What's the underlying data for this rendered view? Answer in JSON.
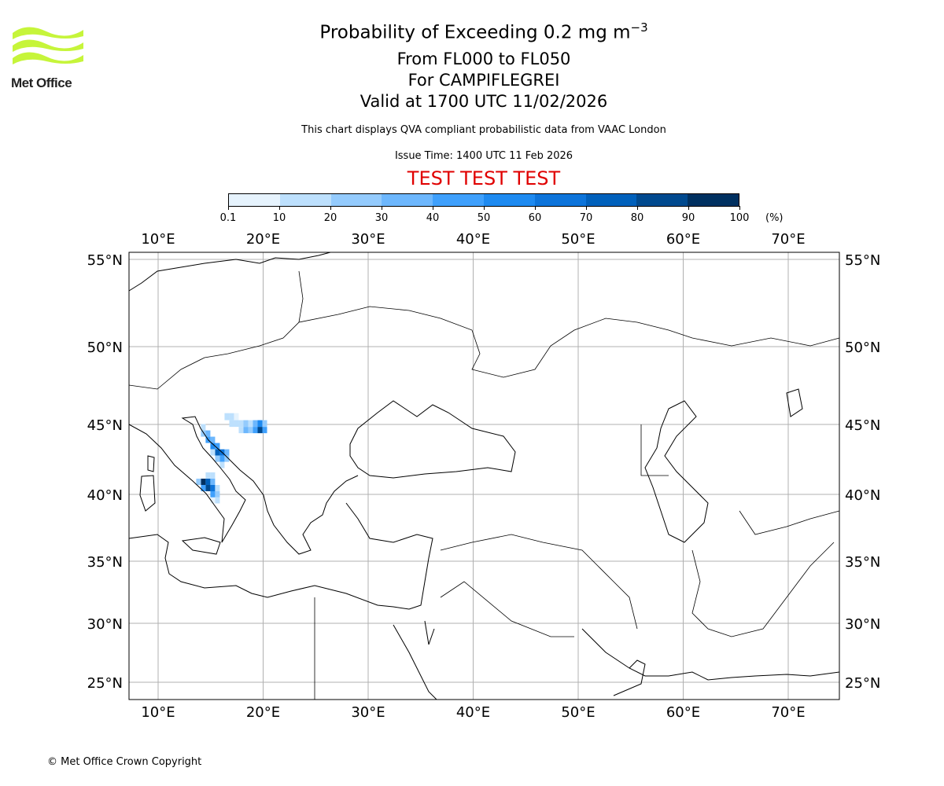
{
  "logo": {
    "text": "Met Office"
  },
  "header": {
    "title": "Probability of Exceeding 0.2 mg m",
    "title_sup": "−3",
    "level_range": "From FL000 to FL050",
    "volcano": "For CAMPIFLEGREI",
    "valid_time": "Valid at 1700 UTC 11/02/2026",
    "note": "This chart displays QVA compliant probabilistic data from VAAC London",
    "issue_time": "Issue Time: 1400 UTC 11 Feb 2026",
    "test_banner": "TEST TEST TEST"
  },
  "colorbar": {
    "ticks": [
      "0.1",
      "10",
      "20",
      "30",
      "40",
      "50",
      "60",
      "70",
      "80",
      "90",
      "100"
    ],
    "unit": "(%)",
    "colors": [
      "#e6f3fd",
      "#bde0fd",
      "#94cbfd",
      "#6db7fd",
      "#3fa0fc",
      "#1e8af0",
      "#0d74da",
      "#0060bb",
      "#00498e",
      "#003060"
    ]
  },
  "chart_data": {
    "type": "heatmap",
    "title": "Probability of Exceeding 0.2 mg m-3",
    "xlim": [
      7.2,
      74.9
    ],
    "ylim": [
      23.8,
      55.5
    ],
    "x_ticks": [
      "10°E",
      "20°E",
      "30°E",
      "40°E",
      "50°E",
      "60°E",
      "70°E"
    ],
    "y_ticks": [
      "55°N",
      "50°N",
      "45°N",
      "40°N",
      "35°N",
      "30°N",
      "25°N"
    ],
    "grid": true,
    "cell_size_deg": 0.45,
    "cells_lon_lat_pct": [
      [
        14.3,
        40.9,
        90
      ],
      [
        14.75,
        40.9,
        70
      ],
      [
        14.75,
        40.45,
        80
      ],
      [
        15.2,
        40.45,
        60
      ],
      [
        14.3,
        40.45,
        40
      ],
      [
        15.2,
        40.9,
        30
      ],
      [
        15.2,
        40.0,
        40
      ],
      [
        15.65,
        40.0,
        20
      ],
      [
        14.75,
        41.35,
        10
      ],
      [
        15.2,
        41.35,
        10
      ],
      [
        13.85,
        40.9,
        20
      ],
      [
        15.65,
        40.45,
        10
      ],
      [
        15.65,
        39.55,
        10
      ],
      [
        15.2,
        39.55,
        5
      ],
      [
        14.3,
        44.8,
        10
      ],
      [
        14.3,
        44.35,
        20
      ],
      [
        14.75,
        44.35,
        30
      ],
      [
        14.75,
        43.9,
        40
      ],
      [
        15.2,
        43.9,
        30
      ],
      [
        15.2,
        43.45,
        50
      ],
      [
        15.65,
        43.45,
        40
      ],
      [
        15.65,
        43.0,
        70
      ],
      [
        16.1,
        43.0,
        60
      ],
      [
        16.1,
        42.55,
        40
      ],
      [
        16.55,
        42.55,
        20
      ],
      [
        15.65,
        42.55,
        20
      ],
      [
        16.55,
        43.0,
        30
      ],
      [
        16.1,
        42.1,
        10
      ],
      [
        15.2,
        43.0,
        10
      ],
      [
        16.55,
        45.5,
        10
      ],
      [
        17.0,
        45.5,
        10
      ],
      [
        17.45,
        45.5,
        5
      ],
      [
        17.0,
        45.05,
        10
      ],
      [
        17.45,
        45.05,
        10
      ],
      [
        17.9,
        45.05,
        10
      ],
      [
        18.35,
        45.05,
        20
      ],
      [
        18.8,
        45.05,
        10
      ],
      [
        19.25,
        45.05,
        30
      ],
      [
        19.7,
        45.05,
        50
      ],
      [
        20.15,
        45.05,
        20
      ],
      [
        18.35,
        44.6,
        30
      ],
      [
        18.8,
        44.6,
        20
      ],
      [
        19.25,
        44.6,
        40
      ],
      [
        19.7,
        44.6,
        80
      ],
      [
        20.15,
        44.6,
        40
      ],
      [
        17.9,
        44.6,
        10
      ]
    ]
  },
  "footer": {
    "copyright": "© Met Office Crown Copyright"
  }
}
